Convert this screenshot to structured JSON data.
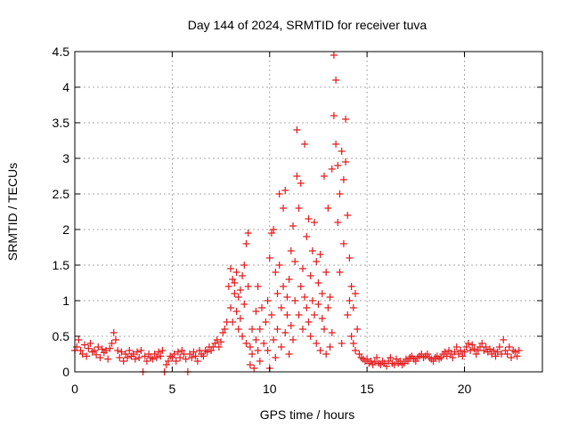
{
  "chart_data": {
    "type": "scatter",
    "title": "Day 144 of 2024, SRMTID for receiver tuva",
    "xlabel": "GPS time / hours",
    "ylabel": "SRMTID / TECUs",
    "xlim": [
      0,
      24
    ],
    "ylim": [
      0,
      4.5
    ],
    "xticks": [
      0,
      5,
      10,
      15,
      20
    ],
    "yticks": [
      0,
      0.5,
      1,
      1.5,
      2,
      2.5,
      3,
      3.5,
      4,
      4.5
    ],
    "xtick_labels": [
      "0",
      "5",
      "10",
      "15",
      "20"
    ],
    "ytick_labels": [
      "0",
      "0.5",
      "1",
      "1.5",
      "2",
      "2.5",
      "3",
      "3.5",
      "4",
      "4.5"
    ],
    "grid": true,
    "marker": "+",
    "series": [
      {
        "name": "SRMTID",
        "color": "#e41a1c",
        "points": [
          [
            0.0,
            0.3
          ],
          [
            0.1,
            0.35
          ],
          [
            0.2,
            0.45
          ],
          [
            0.3,
            0.3
          ],
          [
            0.4,
            0.25
          ],
          [
            0.5,
            0.38
          ],
          [
            0.6,
            0.22
          ],
          [
            0.7,
            0.33
          ],
          [
            0.8,
            0.4
          ],
          [
            0.9,
            0.28
          ],
          [
            1.0,
            0.3
          ],
          [
            1.1,
            0.24
          ],
          [
            1.2,
            0.35
          ],
          [
            1.3,
            0.2
          ],
          [
            1.4,
            0.32
          ],
          [
            1.5,
            0.27
          ],
          [
            1.6,
            0.3
          ],
          [
            1.7,
            0.18
          ],
          [
            1.8,
            0.33
          ],
          [
            1.9,
            0.4
          ],
          [
            2.0,
            0.55
          ],
          [
            2.1,
            0.45
          ],
          [
            2.2,
            0.3
          ],
          [
            2.3,
            0.2
          ],
          [
            2.4,
            0.28
          ],
          [
            2.5,
            0.15
          ],
          [
            2.6,
            0.25
          ],
          [
            2.7,
            0.2
          ],
          [
            2.8,
            0.3
          ],
          [
            2.9,
            0.22
          ],
          [
            3.0,
            0.25
          ],
          [
            3.1,
            0.18
          ],
          [
            3.2,
            0.28
          ],
          [
            3.3,
            0.2
          ],
          [
            3.4,
            0.3
          ],
          [
            3.5,
            0.0
          ],
          [
            3.6,
            0.22
          ],
          [
            3.7,
            0.15
          ],
          [
            3.8,
            0.25
          ],
          [
            3.9,
            0.2
          ],
          [
            4.0,
            0.18
          ],
          [
            4.1,
            0.25
          ],
          [
            4.2,
            0.2
          ],
          [
            4.3,
            0.28
          ],
          [
            4.4,
            0.22
          ],
          [
            4.5,
            0.3
          ],
          [
            4.6,
            0.0
          ],
          [
            4.7,
            0.1
          ],
          [
            4.8,
            0.15
          ],
          [
            4.9,
            0.22
          ],
          [
            5.0,
            0.2
          ],
          [
            5.1,
            0.25
          ],
          [
            5.2,
            0.15
          ],
          [
            5.3,
            0.28
          ],
          [
            5.4,
            0.2
          ],
          [
            5.5,
            0.3
          ],
          [
            5.6,
            0.25
          ],
          [
            5.7,
            0.18
          ],
          [
            5.8,
            0.0
          ],
          [
            5.9,
            0.25
          ],
          [
            6.0,
            0.2
          ],
          [
            6.1,
            0.28
          ],
          [
            6.2,
            0.22
          ],
          [
            6.3,
            0.15
          ],
          [
            6.4,
            0.3
          ],
          [
            6.5,
            0.25
          ],
          [
            6.6,
            0.22
          ],
          [
            6.7,
            0.3
          ],
          [
            6.8,
            0.28
          ],
          [
            6.9,
            0.35
          ],
          [
            7.0,
            0.3
          ],
          [
            7.1,
            0.35
          ],
          [
            7.2,
            0.4
          ],
          [
            7.3,
            0.45
          ],
          [
            7.4,
            0.35
          ],
          [
            7.5,
            0.42
          ],
          [
            7.6,
            0.55
          ],
          [
            7.7,
            0.6
          ],
          [
            7.8,
            0.7
          ],
          [
            7.9,
            1.2
          ],
          [
            8.0,
            1.45
          ],
          [
            8.0,
            0.9
          ],
          [
            8.1,
            1.3
          ],
          [
            8.1,
            0.7
          ],
          [
            8.2,
            1.1
          ],
          [
            8.2,
            1.25
          ],
          [
            8.3,
            0.85
          ],
          [
            8.3,
            1.4
          ],
          [
            8.4,
            1.05
          ],
          [
            8.4,
            0.6
          ],
          [
            8.5,
            1.15
          ],
          [
            8.5,
            0.75
          ],
          [
            8.6,
            1.35
          ],
          [
            8.6,
            0.5
          ],
          [
            8.7,
            1.5
          ],
          [
            8.7,
            0.95
          ],
          [
            8.8,
            1.8
          ],
          [
            8.8,
            0.4
          ],
          [
            8.9,
            1.95
          ],
          [
            8.9,
            1.2
          ],
          [
            9.0,
            0.35
          ],
          [
            9.0,
            0.1
          ],
          [
            9.1,
            0.25
          ],
          [
            9.1,
            0.6
          ],
          [
            9.2,
            0.05
          ],
          [
            9.3,
            0.45
          ],
          [
            9.3,
            0.85
          ],
          [
            9.4,
            1.2
          ],
          [
            9.4,
            0.3
          ],
          [
            9.5,
            0.6
          ],
          [
            9.5,
            0.15
          ],
          [
            9.6,
            0.9
          ],
          [
            9.7,
            0.4
          ],
          [
            9.8,
            0.7
          ],
          [
            9.9,
            1.0
          ],
          [
            9.9,
            0.3
          ],
          [
            10.0,
            1.6
          ],
          [
            10.0,
            0.05
          ],
          [
            10.1,
            1.95
          ],
          [
            10.1,
            0.8
          ],
          [
            10.2,
            2.0
          ],
          [
            10.2,
            0.45
          ],
          [
            10.3,
            1.4
          ],
          [
            10.3,
            0.2
          ],
          [
            10.4,
            1.1
          ],
          [
            10.4,
            0.6
          ],
          [
            10.5,
            1.5
          ],
          [
            10.5,
            2.5
          ],
          [
            10.6,
            0.9
          ],
          [
            10.6,
            0.35
          ],
          [
            10.7,
            1.2
          ],
          [
            10.7,
            2.3
          ],
          [
            10.8,
            2.55
          ],
          [
            10.8,
            0.55
          ],
          [
            10.9,
            0.8
          ],
          [
            10.9,
            1.05
          ],
          [
            11.0,
            1.3
          ],
          [
            11.0,
            0.25
          ],
          [
            11.1,
            0.65
          ],
          [
            11.1,
            1.7
          ],
          [
            11.2,
            2.05
          ],
          [
            11.2,
            0.45
          ],
          [
            11.3,
            1.55
          ],
          [
            11.3,
            1.0
          ],
          [
            11.4,
            3.4
          ],
          [
            11.4,
            2.75
          ],
          [
            11.5,
            2.3
          ],
          [
            11.5,
            0.8
          ],
          [
            11.6,
            2.65
          ],
          [
            11.6,
            1.2
          ],
          [
            11.7,
            1.45
          ],
          [
            11.7,
            0.6
          ],
          [
            11.8,
            3.2
          ],
          [
            11.8,
            1.05
          ],
          [
            11.9,
            1.9
          ],
          [
            11.9,
            0.9
          ],
          [
            12.0,
            2.15
          ],
          [
            12.0,
            0.7
          ],
          [
            12.1,
            1.35
          ],
          [
            12.1,
            0.5
          ],
          [
            12.2,
            1.0
          ],
          [
            12.2,
            1.7
          ],
          [
            12.3,
            2.1
          ],
          [
            12.3,
            0.8
          ],
          [
            12.4,
            1.55
          ],
          [
            12.4,
            0.4
          ],
          [
            12.5,
            1.25
          ],
          [
            12.5,
            0.95
          ],
          [
            12.6,
            1.65
          ],
          [
            12.6,
            0.3
          ],
          [
            12.7,
            0.75
          ],
          [
            12.7,
            1.1
          ],
          [
            12.8,
            2.75
          ],
          [
            12.8,
            0.6
          ],
          [
            12.9,
            1.4
          ],
          [
            12.9,
            0.25
          ],
          [
            13.0,
            2.3
          ],
          [
            13.0,
            0.9
          ],
          [
            13.1,
            1.05
          ],
          [
            13.1,
            0.35
          ],
          [
            13.2,
            2.85
          ],
          [
            13.2,
            0.55
          ],
          [
            13.3,
            4.45
          ],
          [
            13.3,
            3.6
          ],
          [
            13.4,
            4.1
          ],
          [
            13.4,
            3.2
          ],
          [
            13.5,
            2.9
          ],
          [
            13.5,
            2.1
          ],
          [
            13.6,
            2.5
          ],
          [
            13.6,
            1.4
          ],
          [
            13.7,
            3.1
          ],
          [
            13.7,
            0.4
          ],
          [
            13.8,
            2.7
          ],
          [
            13.8,
            1.8
          ],
          [
            13.9,
            3.55
          ],
          [
            13.9,
            2.95
          ],
          [
            14.0,
            2.2
          ],
          [
            14.0,
            0.8
          ],
          [
            14.1,
            1.6
          ],
          [
            14.1,
            1.0
          ],
          [
            14.2,
            0.5
          ],
          [
            14.2,
            1.2
          ],
          [
            14.3,
            0.4
          ],
          [
            14.3,
            0.9
          ],
          [
            14.4,
            0.3
          ],
          [
            14.4,
            1.1
          ],
          [
            14.5,
            0.6
          ],
          [
            14.6,
            0.25
          ],
          [
            14.7,
            0.2
          ],
          [
            14.8,
            0.18
          ],
          [
            14.9,
            0.15
          ],
          [
            15.0,
            0.18
          ],
          [
            15.1,
            0.12
          ],
          [
            15.2,
            0.15
          ],
          [
            15.3,
            0.1
          ],
          [
            15.4,
            0.14
          ],
          [
            15.5,
            0.2
          ],
          [
            15.6,
            0.12
          ],
          [
            15.7,
            0.1
          ],
          [
            15.8,
            0.15
          ],
          [
            15.9,
            0.12
          ],
          [
            16.0,
            0.08
          ],
          [
            16.1,
            0.15
          ],
          [
            16.2,
            0.2
          ],
          [
            16.3,
            0.12
          ],
          [
            16.4,
            0.1
          ],
          [
            16.5,
            0.18
          ],
          [
            16.6,
            0.12
          ],
          [
            16.7,
            0.15
          ],
          [
            16.8,
            0.1
          ],
          [
            16.9,
            0.12
          ],
          [
            17.0,
            0.18
          ],
          [
            17.1,
            0.15
          ],
          [
            17.2,
            0.2
          ],
          [
            17.3,
            0.22
          ],
          [
            17.4,
            0.18
          ],
          [
            17.5,
            0.15
          ],
          [
            17.6,
            0.2
          ],
          [
            17.7,
            0.22
          ],
          [
            17.8,
            0.25
          ],
          [
            17.9,
            0.2
          ],
          [
            18.0,
            0.22
          ],
          [
            18.1,
            0.25
          ],
          [
            18.2,
            0.2
          ],
          [
            18.3,
            0.18
          ],
          [
            18.4,
            0.15
          ],
          [
            18.5,
            0.2
          ],
          [
            18.6,
            0.22
          ],
          [
            18.7,
            0.18
          ],
          [
            18.8,
            0.2
          ],
          [
            18.9,
            0.25
          ],
          [
            19.0,
            0.28
          ],
          [
            19.1,
            0.22
          ],
          [
            19.2,
            0.3
          ],
          [
            19.3,
            0.25
          ],
          [
            19.4,
            0.2
          ],
          [
            19.5,
            0.28
          ],
          [
            19.6,
            0.35
          ],
          [
            19.7,
            0.25
          ],
          [
            19.8,
            0.3
          ],
          [
            19.9,
            0.22
          ],
          [
            20.0,
            0.28
          ],
          [
            20.1,
            0.35
          ],
          [
            20.2,
            0.4
          ],
          [
            20.3,
            0.3
          ],
          [
            20.4,
            0.38
          ],
          [
            20.5,
            0.32
          ],
          [
            20.6,
            0.25
          ],
          [
            20.7,
            0.3
          ],
          [
            20.8,
            0.35
          ],
          [
            20.9,
            0.4
          ],
          [
            21.0,
            0.3
          ],
          [
            21.1,
            0.35
          ],
          [
            21.2,
            0.28
          ],
          [
            21.3,
            0.32
          ],
          [
            21.4,
            0.25
          ],
          [
            21.5,
            0.3
          ],
          [
            21.6,
            0.22
          ],
          [
            21.7,
            0.28
          ],
          [
            21.8,
            0.35
          ],
          [
            21.9,
            0.25
          ],
          [
            22.0,
            0.45
          ],
          [
            22.1,
            0.3
          ],
          [
            22.2,
            0.25
          ],
          [
            22.3,
            0.35
          ],
          [
            22.4,
            0.2
          ],
          [
            22.5,
            0.3
          ],
          [
            22.6,
            0.28
          ],
          [
            22.7,
            0.22
          ],
          [
            22.8,
            0.3
          ]
        ]
      }
    ]
  }
}
